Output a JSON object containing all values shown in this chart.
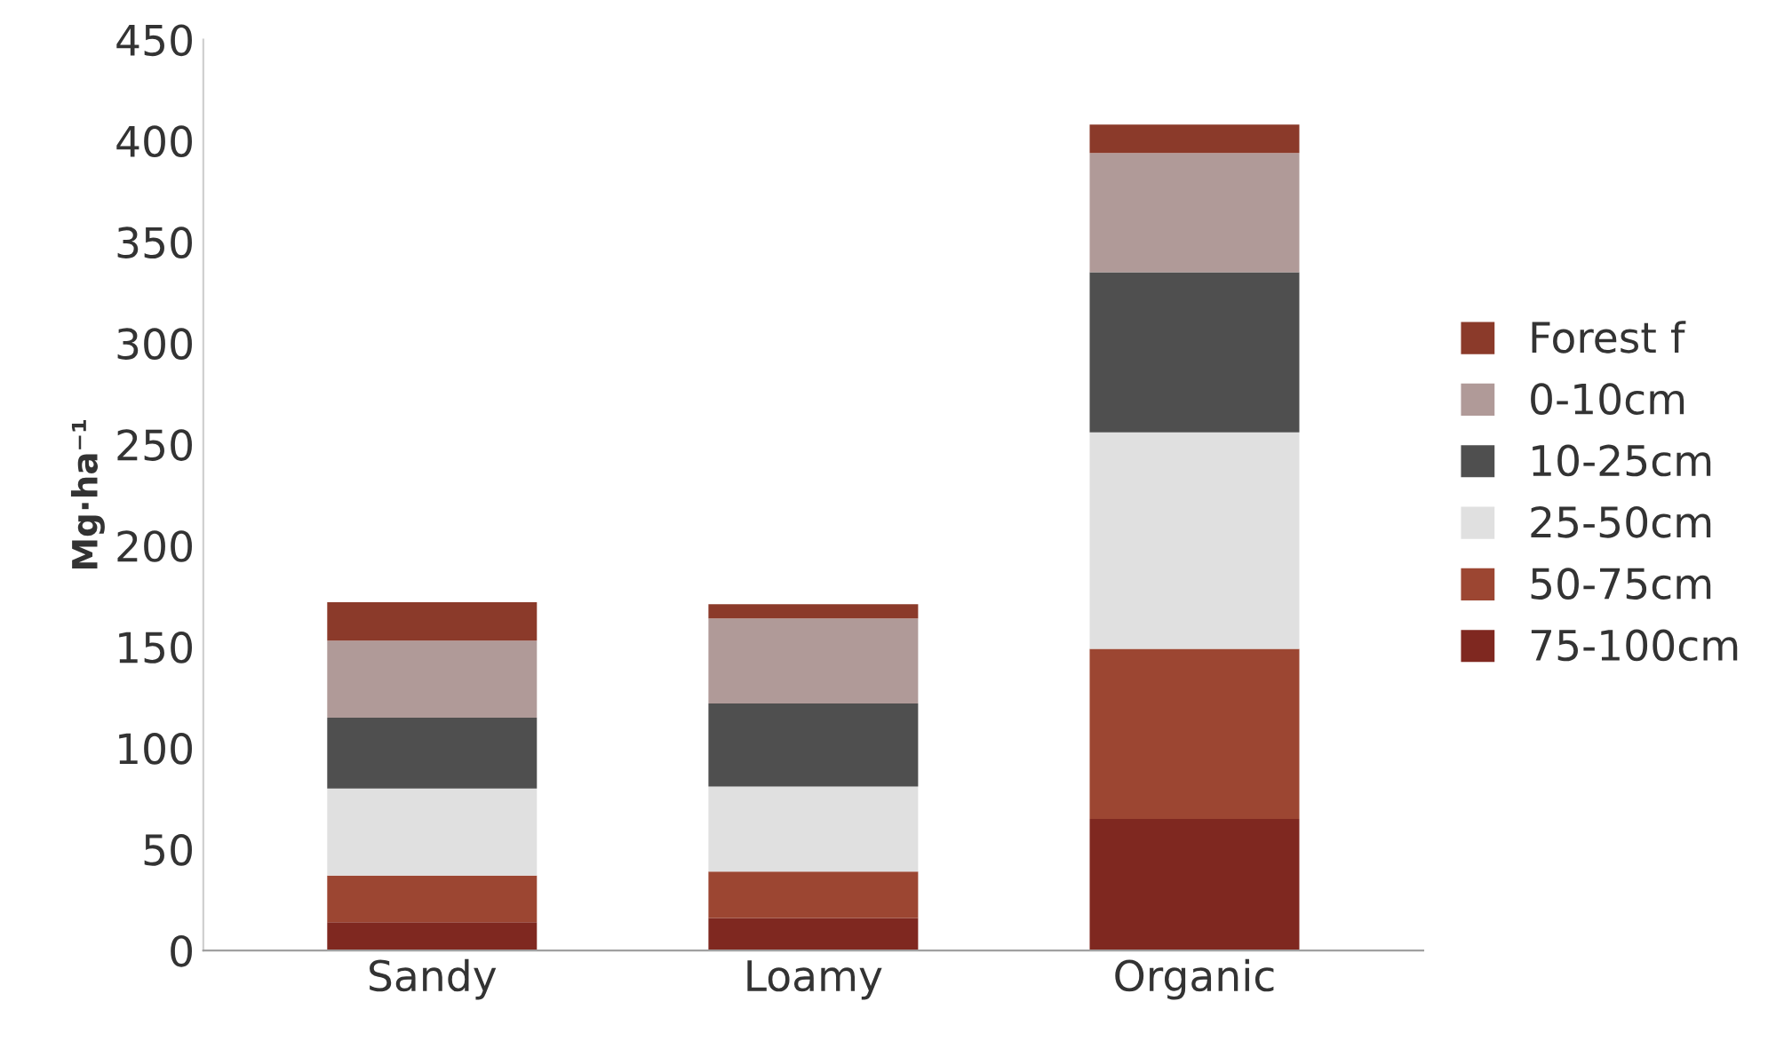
{
  "chart_data": {
    "type": "bar",
    "stacked": true,
    "ylabel": "Mg·ha⁻¹",
    "categories": [
      "Sandy",
      "Loamy",
      "Organic"
    ],
    "ylim": [
      0,
      450
    ],
    "yticks": [
      0,
      50,
      100,
      150,
      200,
      250,
      300,
      350,
      400,
      450
    ],
    "grid": false,
    "legend": "right",
    "series": [
      {
        "name": "75-100cm",
        "color": "#7f2820",
        "values": [
          14,
          16,
          65
        ]
      },
      {
        "name": "50-75cm",
        "color": "#9c4632",
        "values": [
          23,
          23,
          84
        ]
      },
      {
        "name": "25-50cm",
        "color": "#e0e0e0",
        "values": [
          43,
          42,
          107
        ]
      },
      {
        "name": "10-25cm",
        "color": "#4f4f4f",
        "values": [
          35,
          41,
          79
        ]
      },
      {
        "name": "0-10cm",
        "color": "#b09a98",
        "values": [
          38,
          42,
          59
        ]
      },
      {
        "name": "Forest f",
        "color": "#8b3a2a",
        "values": [
          19,
          7,
          14
        ]
      }
    ]
  }
}
